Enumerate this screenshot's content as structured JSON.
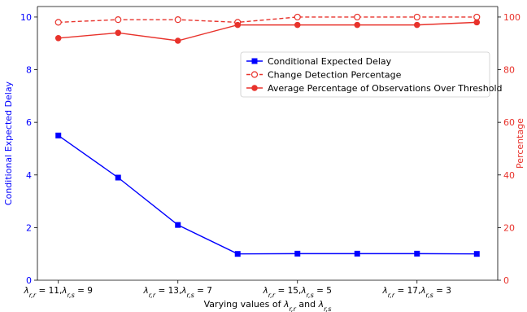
{
  "chart_data": {
    "type": "line",
    "title": "",
    "xlabel": "Varying values of λ_{r,r} and λ_{r,s}",
    "ylabel_left": "Conditional Expected Delay",
    "ylabel_right": "Percentage",
    "ylim_left": [
      0,
      10.4
    ],
    "ylim_right": [
      0,
      104
    ],
    "yticks_left": [
      0,
      2,
      4,
      6,
      8,
      10
    ],
    "yticks_right": [
      0,
      20,
      40,
      60,
      80,
      100
    ],
    "x": [
      0,
      1,
      2,
      3,
      4,
      5,
      6,
      7
    ],
    "xlim": [
      -0.35,
      7.35
    ],
    "xticks": [
      {
        "pos": 0,
        "a": "11",
        "b": "9"
      },
      {
        "pos": 2,
        "a": "13",
        "b": "7"
      },
      {
        "pos": 4,
        "a": "15",
        "b": "5"
      },
      {
        "pos": 6,
        "a": "17",
        "b": "3"
      }
    ],
    "series": [
      {
        "name": "Conditional Expected Delay",
        "axis": "left",
        "color": "#0000ff",
        "style": "solid",
        "marker": "square",
        "values": [
          5.5,
          3.9,
          2.1,
          1.0,
          1.01,
          1.01,
          1.01,
          1.0
        ]
      },
      {
        "name": "Change Detection Percentage",
        "axis": "right",
        "color": "#e8322b",
        "style": "dashed",
        "marker": "circle-open",
        "values": [
          98,
          99,
          99,
          98,
          100,
          100,
          100,
          100
        ]
      },
      {
        "name": "Average Percentage of Observations Over Threshold",
        "axis": "right",
        "color": "#e8322b",
        "style": "solid",
        "marker": "circle",
        "values": [
          92,
          94,
          91,
          97,
          97,
          97,
          97,
          98
        ]
      }
    ],
    "legend": "upper-right",
    "grid": false
  }
}
